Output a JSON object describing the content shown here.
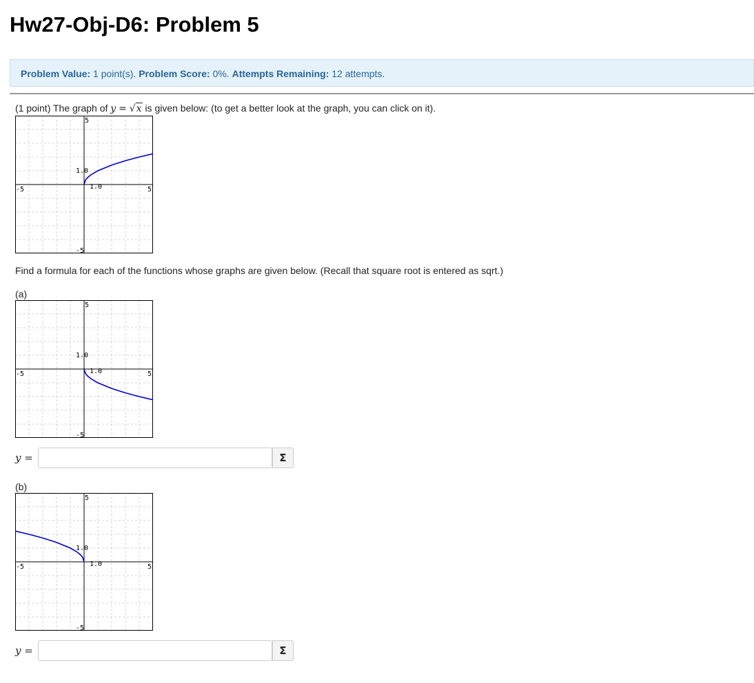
{
  "page": {
    "title": "Hw27-Obj-D6: Problem 5"
  },
  "info": {
    "value_label": "Problem Value:",
    "value": "1 point(s).",
    "score_label": "Problem Score:",
    "score": "0%.",
    "attempts_label": "Attempts Remaining:",
    "attempts": "12 attempts."
  },
  "intro": {
    "prefix": "(1 point) The graph of",
    "y": "y",
    "equals": "=",
    "radicand": "x",
    "suffix": "is given below: (to get a better look at the graph, you can click on it)."
  },
  "instruction": "Find a formula for each of the functions whose graphs are given below. (Recall that square root is entered as sqrt.)",
  "parts": [
    {
      "label": "(a)",
      "y_var": "y",
      "eq": "=",
      "input_value": "",
      "input_placeholder": "",
      "button": "Σ"
    },
    {
      "label": "(b)",
      "y_var": "y",
      "eq": "=",
      "input_value": "",
      "input_placeholder": "",
      "button": "Σ"
    }
  ],
  "chart_data": [
    {
      "type": "line",
      "id": "reference",
      "function": "y = sqrt(x)",
      "xlim": [
        -5,
        5
      ],
      "ylim": [
        -5,
        5
      ],
      "grid": true,
      "tick_labels": {
        "x_min": "-5",
        "x_max": "5",
        "y_min": "-5",
        "y_max": "5",
        "x_unit": "1.0",
        "y_unit": "1.0"
      },
      "line_color": "#0000cc",
      "series": [
        {
          "x": [
            0,
            0.1,
            0.25,
            0.5,
            1,
            2,
            3,
            4,
            5
          ],
          "y": [
            0,
            0.316,
            0.5,
            0.707,
            1,
            1.414,
            1.732,
            2,
            2.236
          ]
        }
      ]
    },
    {
      "type": "line",
      "id": "part-a",
      "xlim": [
        -5,
        5
      ],
      "ylim": [
        -5,
        5
      ],
      "grid": true,
      "tick_labels": {
        "x_min": "-5",
        "x_max": "5",
        "y_min": "-5",
        "y_max": "5",
        "x_unit": "1.0",
        "y_unit": "1.0"
      },
      "line_color": "#0000cc",
      "series": [
        {
          "x": [
            0,
            0.1,
            0.25,
            0.5,
            1,
            2,
            3,
            4,
            5
          ],
          "y": [
            0,
            -0.316,
            -0.5,
            -0.707,
            -1,
            -1.414,
            -1.732,
            -2,
            -2.236
          ]
        }
      ]
    },
    {
      "type": "line",
      "id": "part-b",
      "xlim": [
        -5,
        5
      ],
      "ylim": [
        -5,
        5
      ],
      "grid": true,
      "tick_labels": {
        "x_min": "-5",
        "x_max": "5",
        "y_min": "-5",
        "y_max": "5",
        "x_unit": "1.0",
        "y_unit": "1.0"
      },
      "line_color": "#0000cc",
      "series": [
        {
          "x": [
            -5,
            -4,
            -3,
            -2,
            -1,
            -0.5,
            -0.25,
            -0.1,
            0
          ],
          "y": [
            2.236,
            2,
            1.732,
            1.414,
            1,
            0.707,
            0.5,
            0.316,
            0
          ]
        }
      ]
    }
  ]
}
